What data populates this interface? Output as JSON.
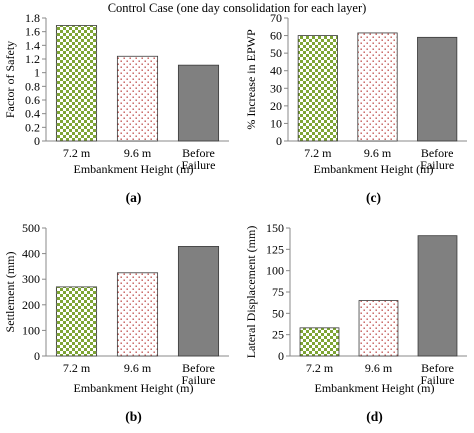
{
  "figure_title": "Control Case (one day consolidation for each layer)",
  "colors": {
    "bar_7_2_green": "#7ea534",
    "bar_9_6_red": "#c0504d",
    "bar_failure_gray": "#808080"
  },
  "chart_data": [
    {
      "type": "bar",
      "panel_label": "(a)",
      "ylabel": "Factor of Safety",
      "xlabel": "Embankment Height (m)",
      "categories": [
        "7.2 m",
        "9.6 m",
        "Before Failure"
      ],
      "values": [
        1.69,
        1.24,
        1.11
      ],
      "ylim": [
        0,
        1.8
      ],
      "yticks": [
        "0",
        "0.2",
        "0.4",
        "0.6",
        "0.8",
        "1",
        "1.2",
        "1.4",
        "1.6",
        "1.8"
      ],
      "patterns": [
        "green-checker",
        "red-dots",
        "solid-gray"
      ]
    },
    {
      "type": "bar",
      "panel_label": "(c)",
      "ylabel": "% Increase in EPWP",
      "xlabel": "Embankment Height (m)",
      "categories": [
        "7.2 m",
        "9.6 m",
        "Before Failure"
      ],
      "values": [
        60,
        61.5,
        59
      ],
      "ylim": [
        0,
        70
      ],
      "yticks": [
        "0",
        "10",
        "20",
        "30",
        "40",
        "50",
        "60",
        "70"
      ],
      "patterns": [
        "green-checker",
        "red-dots",
        "solid-gray"
      ]
    },
    {
      "type": "bar",
      "panel_label": "(b)",
      "ylabel": "Settlement (mm)",
      "xlabel": "Embankment Height (m)",
      "categories": [
        "7.2 m",
        "9.6 m",
        "Before Failure"
      ],
      "values": [
        270,
        325,
        428
      ],
      "ylim": [
        0,
        500
      ],
      "yticks": [
        "0",
        "100",
        "200",
        "300",
        "400",
        "500"
      ],
      "patterns": [
        "green-checker",
        "red-dots",
        "solid-gray"
      ]
    },
    {
      "type": "bar",
      "panel_label": "(d)",
      "ylabel": "Lateral Displacement (mm)",
      "xlabel": "Embankment Height (m)",
      "categories": [
        "7.2 m",
        "9.6 m",
        "Before Failure"
      ],
      "values": [
        33,
        65,
        141
      ],
      "ylim": [
        0,
        150
      ],
      "yticks": [
        "0",
        "25",
        "50",
        "75",
        "100",
        "125",
        "150"
      ],
      "patterns": [
        "green-checker",
        "red-dots",
        "solid-gray"
      ]
    }
  ]
}
